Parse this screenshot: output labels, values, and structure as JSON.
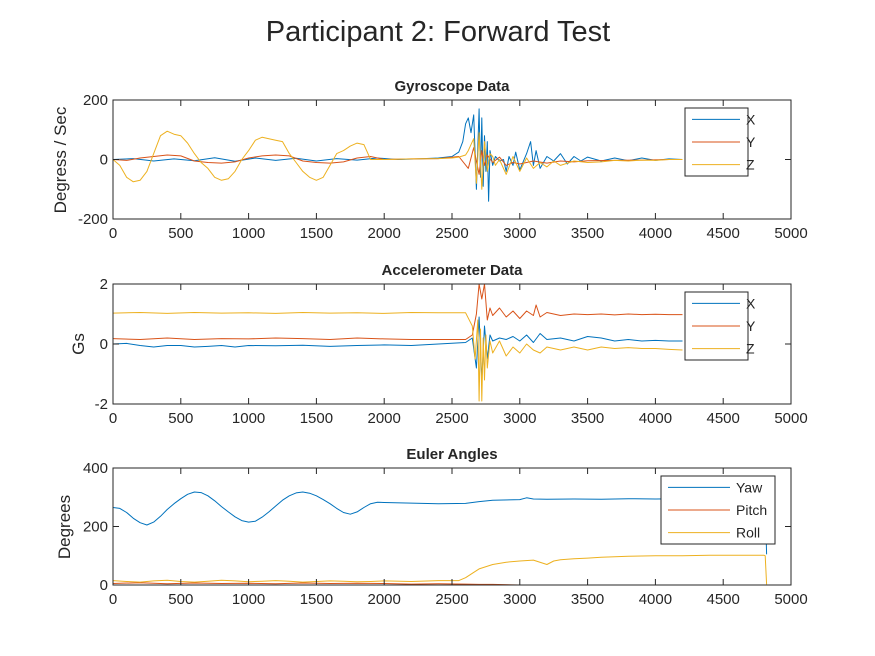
{
  "figure": {
    "title": "Participant 2: Forward Test"
  },
  "chart_data": [
    {
      "type": "line",
      "title": "Gyroscope Data",
      "xlabel": "",
      "ylabel": "Degress / Sec",
      "xlim": [
        0,
        5000
      ],
      "ylim": [
        -200,
        200
      ],
      "xticks": [
        "0",
        "500",
        "1000",
        "1500",
        "2000",
        "2500",
        "3000",
        "3500",
        "4000",
        "4500",
        "5000"
      ],
      "yticks": [
        "-200",
        "0",
        "200"
      ],
      "legend": {
        "placement": "top-right",
        "entries": [
          "X",
          "Y",
          "Z"
        ]
      },
      "grid": false,
      "series": [
        {
          "name": "X",
          "color": "#0072BD",
          "x": [
            0,
            150,
            300,
            450,
            600,
            750,
            900,
            1050,
            1200,
            1350,
            1500,
            1650,
            1800,
            1950,
            2100,
            2250,
            2400,
            2500,
            2550,
            2580,
            2600,
            2620,
            2640,
            2660,
            2680,
            2700,
            2710,
            2720,
            2730,
            2740,
            2750,
            2760,
            2770,
            2780,
            2800,
            2820,
            2850,
            2880,
            2900,
            2920,
            2950,
            2970,
            3000,
            3050,
            3080,
            3100,
            3120,
            3150,
            3200,
            3250,
            3300,
            3350,
            3400,
            3450,
            3500,
            3600,
            3700,
            3800,
            3900,
            4000,
            4100,
            4200
          ],
          "values": [
            0,
            3,
            -5,
            2,
            -4,
            6,
            -6,
            5,
            -3,
            4,
            -5,
            3,
            -2,
            5,
            0,
            2,
            5,
            10,
            25,
            60,
            120,
            140,
            90,
            150,
            -100,
            170,
            -60,
            140,
            -90,
            80,
            -40,
            60,
            -140,
            30,
            -20,
            10,
            -5,
            0,
            -40,
            10,
            -20,
            25,
            -35,
            20,
            60,
            -20,
            30,
            -30,
            10,
            -5,
            20,
            -15,
            10,
            -5,
            8,
            -5,
            5,
            -4,
            5,
            -3,
            2,
            0
          ]
        },
        {
          "name": "Y",
          "color": "#D95319",
          "x": [
            0,
            100,
            200,
            300,
            400,
            500,
            600,
            700,
            800,
            900,
            1000,
            1100,
            1200,
            1300,
            1400,
            1500,
            1600,
            1700,
            1800,
            1900,
            2000,
            2200,
            2400,
            2550,
            2620,
            2660,
            2700,
            2720,
            2740,
            2760,
            2800,
            2850,
            2900,
            2950,
            3000,
            3100,
            3200,
            3300,
            3400,
            3500,
            3700,
            3900,
            4100,
            4200
          ],
          "values": [
            0,
            -3,
            5,
            10,
            15,
            12,
            -5,
            -10,
            -12,
            -8,
            5,
            12,
            15,
            12,
            -5,
            -10,
            -12,
            -8,
            5,
            10,
            0,
            2,
            3,
            10,
            -30,
            40,
            -50,
            30,
            -20,
            15,
            -10,
            8,
            -20,
            -10,
            -15,
            -5,
            -12,
            -5,
            -8,
            -4,
            -3,
            -2,
            0,
            0
          ]
        },
        {
          "name": "Z",
          "color": "#EDB120",
          "x": [
            0,
            50,
            100,
            150,
            200,
            250,
            300,
            350,
            400,
            450,
            500,
            550,
            600,
            650,
            700,
            750,
            800,
            850,
            900,
            950,
            1000,
            1050,
            1100,
            1150,
            1200,
            1250,
            1300,
            1350,
            1400,
            1450,
            1500,
            1550,
            1600,
            1650,
            1700,
            1750,
            1800,
            1850,
            1900,
            1950,
            2000,
            2200,
            2400,
            2500,
            2550,
            2600,
            2620,
            2640,
            2660,
            2680,
            2700,
            2720,
            2740,
            2760,
            2780,
            2800,
            2820,
            2850,
            2880,
            2900,
            2950,
            3000,
            3050,
            3100,
            3150,
            3200,
            3250,
            3300,
            3400,
            3500,
            3600,
            3700,
            3800,
            3900,
            4000,
            4100,
            4200
          ],
          "values": [
            0,
            -20,
            -60,
            -75,
            -70,
            -40,
            20,
            80,
            95,
            85,
            80,
            55,
            20,
            -10,
            -30,
            -60,
            -70,
            -65,
            -40,
            0,
            30,
            65,
            75,
            70,
            65,
            60,
            20,
            -10,
            -40,
            -60,
            -70,
            -60,
            -20,
            20,
            30,
            45,
            55,
            50,
            0,
            0,
            0,
            2,
            3,
            5,
            8,
            15,
            30,
            50,
            70,
            -80,
            90,
            -100,
            60,
            -40,
            20,
            10,
            -20,
            0,
            -30,
            -50,
            10,
            -40,
            5,
            -30,
            -10,
            -25,
            -5,
            -20,
            -5,
            -10,
            -8,
            -3,
            -5,
            -2,
            -3,
            0,
            0
          ]
        }
      ]
    },
    {
      "type": "line",
      "title": "Accelerometer Data",
      "xlabel": "",
      "ylabel": "Gs",
      "xlim": [
        0,
        5000
      ],
      "ylim": [
        -2,
        2
      ],
      "xticks": [
        "0",
        "500",
        "1000",
        "1500",
        "2000",
        "2500",
        "3000",
        "3500",
        "4000",
        "4500",
        "5000"
      ],
      "yticks": [
        "-2",
        "0",
        "2"
      ],
      "legend": {
        "placement": "top-right",
        "entries": [
          "X",
          "Y",
          "Z"
        ]
      },
      "grid": false,
      "series": [
        {
          "name": "X",
          "color": "#0072BD",
          "x": [
            0,
            100,
            200,
            300,
            400,
            500,
            600,
            700,
            800,
            900,
            1000,
            1200,
            1400,
            1600,
            1800,
            2000,
            2200,
            2400,
            2600,
            2650,
            2680,
            2700,
            2720,
            2740,
            2760,
            2780,
            2800,
            2850,
            2900,
            2950,
            3000,
            3050,
            3100,
            3150,
            3200,
            3300,
            3400,
            3500,
            3600,
            3700,
            3800,
            3900,
            4000,
            4100,
            4200
          ],
          "values": [
            0,
            0.02,
            -0.05,
            -0.1,
            -0.05,
            -0.05,
            -0.1,
            -0.08,
            -0.05,
            -0.1,
            -0.05,
            -0.06,
            -0.04,
            -0.08,
            -0.05,
            -0.03,
            -0.05,
            0,
            0.05,
            0.2,
            -0.8,
            0.9,
            -1.2,
            0.6,
            -0.5,
            0.3,
            0.1,
            0.2,
            0.15,
            0.25,
            0.1,
            0.3,
            0.05,
            0.35,
            0.15,
            0.2,
            0.1,
            0.25,
            0.2,
            0.1,
            0.15,
            0.1,
            0.12,
            0.1,
            0.1
          ]
        },
        {
          "name": "Y",
          "color": "#D95319",
          "x": [
            0,
            200,
            400,
            600,
            800,
            1000,
            1200,
            1400,
            1600,
            1800,
            2000,
            2200,
            2400,
            2600,
            2650,
            2680,
            2700,
            2720,
            2740,
            2760,
            2780,
            2800,
            2850,
            2900,
            2950,
            3000,
            3050,
            3100,
            3120,
            3150,
            3200,
            3300,
            3400,
            3500,
            3600,
            3700,
            3800,
            3900,
            4000,
            4100,
            4200
          ],
          "values": [
            0.18,
            0.15,
            0.2,
            0.15,
            0.18,
            0.17,
            0.2,
            0.18,
            0.15,
            0.2,
            0.17,
            0.15,
            0.15,
            0.15,
            0.3,
            1.0,
            2.0,
            1.5,
            2.0,
            0.8,
            1.2,
            0.95,
            1.2,
            0.9,
            1.1,
            0.85,
            1.1,
            0.95,
            1.3,
            0.9,
            1.05,
            0.95,
            1.0,
            0.98,
            1.0,
            0.97,
            1.0,
            0.98,
            0.99,
            0.98,
            0.98
          ]
        },
        {
          "name": "Z",
          "color": "#EDB120",
          "x": [
            0,
            200,
            400,
            600,
            800,
            1000,
            1200,
            1400,
            1600,
            1800,
            2000,
            2200,
            2400,
            2600,
            2650,
            2670,
            2690,
            2700,
            2710,
            2720,
            2730,
            2740,
            2750,
            2760,
            2780,
            2800,
            2850,
            2900,
            2950,
            3000,
            3050,
            3100,
            3150,
            3200,
            3300,
            3400,
            3500,
            3600,
            3700,
            3800,
            3900,
            4000,
            4100,
            4200
          ],
          "values": [
            1.03,
            1.05,
            1.02,
            1.05,
            1.03,
            1.04,
            1.02,
            1.05,
            1.03,
            1.04,
            1.02,
            1.05,
            1.04,
            1.04,
            0.6,
            -0.5,
            0.8,
            -1.9,
            0.5,
            -1.9,
            0.2,
            -1.2,
            0.3,
            -0.8,
            0.1,
            -0.3,
            0.1,
            -0.4,
            -0.1,
            -0.3,
            0.0,
            -0.2,
            -0.3,
            -0.1,
            -0.2,
            -0.1,
            -0.2,
            -0.1,
            -0.15,
            -0.12,
            -0.15,
            -0.15,
            -0.18,
            -0.2
          ]
        }
      ]
    },
    {
      "type": "line",
      "title": "Euler Angles",
      "xlabel": "",
      "ylabel": "Degrees",
      "xlim": [
        0,
        5000
      ],
      "ylim": [
        0,
        400
      ],
      "xticks": [
        "0",
        "500",
        "1000",
        "1500",
        "2000",
        "2500",
        "3000",
        "3500",
        "4000",
        "4500",
        "5000"
      ],
      "yticks": [
        "0",
        "200",
        "400"
      ],
      "legend": {
        "placement": "top-right",
        "entries": [
          "Yaw",
          "Pitch",
          "Roll"
        ]
      },
      "grid": false,
      "series": [
        {
          "name": "Yaw",
          "color": "#0072BD",
          "x": [
            0,
            50,
            100,
            150,
            200,
            250,
            300,
            350,
            400,
            450,
            500,
            550,
            600,
            650,
            700,
            750,
            800,
            850,
            900,
            950,
            1000,
            1050,
            1100,
            1150,
            1200,
            1250,
            1300,
            1350,
            1400,
            1450,
            1500,
            1550,
            1600,
            1650,
            1700,
            1750,
            1800,
            1850,
            1900,
            1950,
            2000,
            2200,
            2400,
            2600,
            2700,
            2800,
            3000,
            3050,
            3100,
            3200,
            3400,
            3600,
            3800,
            4000,
            4200,
            4400,
            4600,
            4800,
            4810,
            4820
          ],
          "values": [
            265,
            262,
            248,
            228,
            213,
            205,
            215,
            235,
            258,
            278,
            295,
            310,
            318,
            316,
            305,
            288,
            268,
            250,
            233,
            220,
            215,
            218,
            232,
            250,
            270,
            290,
            305,
            315,
            318,
            314,
            305,
            292,
            278,
            262,
            248,
            242,
            250,
            265,
            278,
            283,
            282,
            280,
            278,
            279,
            285,
            290,
            292,
            298,
            294,
            293,
            294,
            293,
            295,
            294,
            295,
            294,
            295,
            295,
            290,
            105
          ]
        },
        {
          "name": "Pitch",
          "color": "#D95319",
          "x": [
            0,
            200,
            400,
            600,
            800,
            1000,
            1200,
            1400,
            1600,
            1800,
            2000,
            2200,
            2400,
            2600,
            2700,
            2800,
            3000,
            3200,
            3400,
            3500,
            3600,
            3800,
            4000,
            4200,
            4400,
            4600,
            4800
          ],
          "values": [
            5,
            8,
            4,
            7,
            5,
            6,
            4,
            7,
            5,
            6,
            5,
            3,
            4,
            3,
            2,
            2,
            0,
            -2,
            -3,
            -5,
            -6,
            -5,
            -4,
            -5,
            -5,
            -5,
            -5
          ]
        },
        {
          "name": "Roll",
          "color": "#EDB120",
          "x": [
            0,
            100,
            200,
            300,
            400,
            500,
            600,
            700,
            800,
            900,
            1000,
            1100,
            1200,
            1300,
            1400,
            1500,
            1600,
            1700,
            1800,
            1900,
            2000,
            2200,
            2400,
            2550,
            2600,
            2650,
            2700,
            2800,
            2900,
            3000,
            3100,
            3200,
            3250,
            3300,
            3400,
            3500,
            3600,
            3800,
            4000,
            4200,
            4400,
            4600,
            4800,
            4810,
            4820
          ],
          "values": [
            15,
            12,
            10,
            14,
            16,
            12,
            10,
            13,
            16,
            14,
            11,
            13,
            15,
            13,
            10,
            12,
            14,
            13,
            11,
            12,
            14,
            12,
            15,
            15,
            25,
            40,
            55,
            70,
            78,
            82,
            85,
            70,
            82,
            86,
            90,
            92,
            95,
            98,
            100,
            100,
            102,
            102,
            102,
            100,
            2
          ]
        }
      ]
    }
  ]
}
